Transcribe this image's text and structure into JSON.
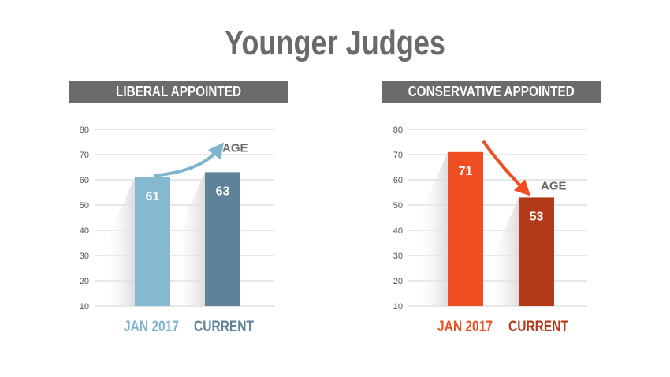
{
  "title": "Younger Judges",
  "chart_data": [
    {
      "type": "bar",
      "title": "LIBERAL APPOINTED",
      "categories": [
        "JAN 2017",
        "CURRENT"
      ],
      "values": [
        61,
        63
      ],
      "ylim": [
        10,
        80
      ],
      "yticks": [
        10,
        20,
        30,
        40,
        50,
        60,
        70,
        80
      ],
      "bar_colors": [
        "#85b9d1",
        "#5e8297"
      ],
      "label_colors": [
        "#7eb4cc",
        "#5e8297"
      ],
      "annotation": "AGE",
      "arrow_color": "#7eb4cc",
      "grid": true
    },
    {
      "type": "bar",
      "title": "CONSERVATIVE APPOINTED",
      "categories": [
        "JAN 2017",
        "CURRENT"
      ],
      "values": [
        71,
        53
      ],
      "ylim": [
        10,
        80
      ],
      "yticks": [
        10,
        20,
        30,
        40,
        50,
        60,
        70,
        80
      ],
      "bar_colors": [
        "#ef4e23",
        "#b33a19"
      ],
      "label_colors": [
        "#ef4e23",
        "#b33a19"
      ],
      "annotation": "AGE",
      "arrow_color": "#ef4e23",
      "grid": true
    }
  ]
}
